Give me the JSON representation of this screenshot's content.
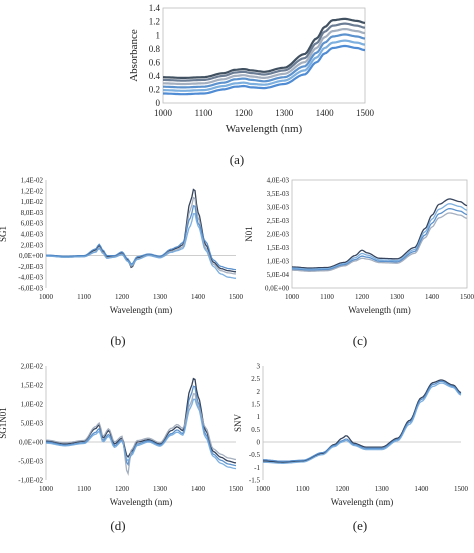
{
  "figure": {
    "captions": [
      "(a)",
      "(b)",
      "(c)",
      "(d)",
      "(e)"
    ]
  },
  "chart_data": [
    {
      "id": "a",
      "type": "line",
      "title": "",
      "xlabel": "Wavelength (nm)",
      "ylabel": "Absorbance",
      "xlim": [
        1000,
        1500
      ],
      "ylim": [
        0,
        1.4
      ],
      "x_ticks": [
        "1000",
        "1100",
        "1200",
        "1300",
        "1400",
        "1500"
      ],
      "x_tick_values": [
        1000,
        1100,
        1200,
        1300,
        1400,
        1500
      ],
      "y_ticks": [
        "0",
        "0.2",
        "0.4",
        "0.6",
        "0.8",
        "1",
        "1.2",
        "1.4"
      ],
      "y_tick_values": [
        0,
        0.2,
        0.4,
        0.6,
        0.8,
        1.0,
        1.2,
        1.4
      ],
      "grid": false,
      "x": [
        1000,
        1050,
        1100,
        1150,
        1180,
        1200,
        1220,
        1250,
        1300,
        1350,
        1380,
        1400,
        1420,
        1450,
        1480,
        1500
      ],
      "series": [
        {
          "values": [
            0.38,
            0.37,
            0.38,
            0.44,
            0.49,
            0.5,
            0.48,
            0.46,
            0.52,
            0.72,
            0.95,
            1.12,
            1.22,
            1.24,
            1.21,
            1.18
          ]
        },
        {
          "values": [
            0.34,
            0.33,
            0.34,
            0.4,
            0.45,
            0.46,
            0.44,
            0.42,
            0.48,
            0.66,
            0.88,
            1.05,
            1.14,
            1.17,
            1.14,
            1.11
          ]
        },
        {
          "values": [
            0.29,
            0.28,
            0.29,
            0.35,
            0.4,
            0.41,
            0.39,
            0.37,
            0.43,
            0.6,
            0.81,
            0.97,
            1.06,
            1.09,
            1.06,
            1.03
          ]
        },
        {
          "values": [
            0.24,
            0.23,
            0.24,
            0.3,
            0.35,
            0.36,
            0.34,
            0.32,
            0.38,
            0.54,
            0.74,
            0.89,
            0.98,
            1.01,
            0.98,
            0.95
          ]
        },
        {
          "values": [
            0.19,
            0.18,
            0.19,
            0.25,
            0.29,
            0.3,
            0.28,
            0.27,
            0.33,
            0.48,
            0.67,
            0.81,
            0.89,
            0.92,
            0.89,
            0.86
          ]
        },
        {
          "values": [
            0.14,
            0.13,
            0.14,
            0.2,
            0.24,
            0.25,
            0.23,
            0.22,
            0.28,
            0.42,
            0.6,
            0.73,
            0.81,
            0.84,
            0.81,
            0.78
          ]
        }
      ],
      "colors": [
        "#2c3e50",
        "#5b6f8a",
        "#9aa6b8",
        "#4a86c8",
        "#6fa6dc",
        "#3d7fcf"
      ]
    },
    {
      "id": "b",
      "type": "line",
      "title": "",
      "xlabel": "Wavelength (nm)",
      "ylabel": "SG1",
      "xlim": [
        1000,
        1500
      ],
      "ylim": [
        -0.006,
        0.014
      ],
      "x_ticks": [
        "1000",
        "1100",
        "1200",
        "1300",
        "1400",
        "1500"
      ],
      "x_tick_values": [
        1000,
        1100,
        1200,
        1300,
        1400,
        1500
      ],
      "y_ticks": [
        "-6,0E-03",
        "-4,0E-03",
        "-2,0E-03",
        "0,0E+00",
        "2,0E-03",
        "4,0E-03",
        "6,0E-03",
        "8,0E-03",
        "1,0E-02",
        "1,2E-02",
        "1,4E-02"
      ],
      "y_tick_values": [
        -0.006,
        -0.004,
        -0.002,
        0,
        0.002,
        0.004,
        0.006,
        0.008,
        0.01,
        0.012,
        0.014
      ],
      "grid": false,
      "x": [
        1000,
        1050,
        1100,
        1130,
        1140,
        1150,
        1160,
        1180,
        1200,
        1215,
        1225,
        1240,
        1270,
        1300,
        1330,
        1345,
        1360,
        1380,
        1390,
        1400,
        1420,
        1440,
        1460,
        1480,
        1500
      ],
      "series": [
        {
          "values": [
            0.0,
            -0.0002,
            -0.0001,
            0.001,
            0.0019,
            0.0008,
            -0.0002,
            -0.0001,
            0.0005,
            -0.0008,
            -0.0022,
            -0.0004,
            0.0002,
            -0.0002,
            0.001,
            0.0014,
            0.002,
            0.01,
            0.0125,
            0.008,
            0.002,
            -0.0012,
            -0.0024,
            -0.0028,
            -0.003
          ]
        },
        {
          "values": [
            0.0,
            -0.0003,
            -0.0002,
            0.0007,
            0.0015,
            0.0005,
            -0.0004,
            -0.0002,
            0.0003,
            -0.001,
            -0.002,
            -0.0006,
            0.0001,
            -0.0003,
            0.0008,
            0.0011,
            0.0016,
            0.0085,
            0.011,
            0.007,
            0.0014,
            -0.0016,
            -0.0028,
            -0.0032,
            -0.0034
          ]
        },
        {
          "values": [
            0.0001,
            -0.0001,
            0.0,
            0.0012,
            0.0021,
            0.001,
            0.0,
            0.0,
            0.0007,
            -0.0006,
            -0.0016,
            -0.0002,
            0.0003,
            -0.0001,
            0.0012,
            0.0016,
            0.0024,
            0.007,
            0.0095,
            0.006,
            0.0026,
            -0.0008,
            -0.002,
            -0.0024,
            -0.0026
          ]
        },
        {
          "values": [
            -0.0001,
            -0.0003,
            -0.0002,
            0.0006,
            0.0013,
            0.0004,
            -0.0005,
            -0.0003,
            0.0002,
            -0.0011,
            -0.0018,
            -0.0007,
            0.0,
            -0.0004,
            0.0006,
            0.0009,
            0.0013,
            0.0055,
            0.008,
            0.0055,
            0.001,
            -0.002,
            -0.0034,
            -0.004,
            -0.0042
          ]
        }
      ],
      "colors": [
        "#1f2f4a",
        "#9aa6b8",
        "#4a86c8",
        "#6fa6dc"
      ]
    },
    {
      "id": "c",
      "type": "line",
      "title": "",
      "xlabel": "Wavelength (nm)",
      "ylabel": "N01",
      "xlim": [
        1000,
        1500
      ],
      "ylim": [
        0,
        0.004
      ],
      "x_ticks": [
        "1000",
        "1100",
        "1200",
        "1300",
        "1400",
        "1500"
      ],
      "x_tick_values": [
        1000,
        1100,
        1200,
        1300,
        1400,
        1500
      ],
      "y_ticks": [
        "0,0E+00",
        "5,0E-04",
        "1,0E-03",
        "1,5E-03",
        "2,0E-03",
        "2,5E-03",
        "3,0E-03",
        "3,5E-03",
        "4,0E-03"
      ],
      "y_tick_values": [
        0,
        0.0005,
        0.001,
        0.0015,
        0.002,
        0.0025,
        0.003,
        0.0035,
        0.004
      ],
      "grid": false,
      "x": [
        1000,
        1050,
        1100,
        1150,
        1180,
        1200,
        1215,
        1250,
        1300,
        1350,
        1380,
        1400,
        1420,
        1450,
        1480,
        1500
      ],
      "series": [
        {
          "values": [
            0.00078,
            0.00074,
            0.00076,
            0.00095,
            0.0012,
            0.0014,
            0.0013,
            0.0011,
            0.00108,
            0.0015,
            0.0022,
            0.0027,
            0.0031,
            0.0033,
            0.0032,
            0.00305
          ]
        },
        {
          "values": [
            0.00074,
            0.0007,
            0.00072,
            0.0009,
            0.00112,
            0.00128,
            0.00122,
            0.00104,
            0.00102,
            0.00142,
            0.00208,
            0.00255,
            0.00292,
            0.00312,
            0.00302,
            0.00288
          ]
        },
        {
          "values": [
            0.0007,
            0.00066,
            0.00068,
            0.00086,
            0.00105,
            0.00118,
            0.00114,
            0.00099,
            0.00097,
            0.00135,
            0.00196,
            0.0024,
            0.00275,
            0.00294,
            0.00285,
            0.00272
          ]
        },
        {
          "values": [
            0.00066,
            0.00062,
            0.00064,
            0.00082,
            0.001,
            0.0011,
            0.00107,
            0.00094,
            0.00092,
            0.00128,
            0.00186,
            0.00226,
            0.0026,
            0.00278,
            0.0027,
            0.00258
          ]
        }
      ],
      "colors": [
        "#1f2f4a",
        "#6fa6dc",
        "#4a86c8",
        "#9aa6b8"
      ]
    },
    {
      "id": "d",
      "type": "line",
      "title": "",
      "xlabel": "Wavelength (nm)",
      "ylabel": "SG1N01",
      "xlim": [
        1000,
        1500
      ],
      "ylim": [
        -0.01,
        0.02
      ],
      "x_ticks": [
        "1000",
        "1100",
        "1200",
        "1300",
        "1400",
        "1500"
      ],
      "x_tick_values": [
        1000,
        1100,
        1200,
        1300,
        1400,
        1500
      ],
      "y_ticks": [
        "-1,0E-02",
        "-5,0E-03",
        "0,0E+00",
        "5,0E-03",
        "1,0E-02",
        "1,5E-02",
        "2,0E-02"
      ],
      "y_tick_values": [
        -0.01,
        -0.005,
        0,
        0.005,
        0.01,
        0.015,
        0.02
      ],
      "grid": false,
      "x": [
        1000,
        1050,
        1100,
        1130,
        1140,
        1150,
        1165,
        1180,
        1200,
        1215,
        1225,
        1240,
        1270,
        1300,
        1330,
        1345,
        1360,
        1380,
        1390,
        1400,
        1420,
        1440,
        1460,
        1480,
        1500
      ],
      "series": [
        {
          "values": [
            0.0003,
            -0.0005,
            0.0002,
            0.0035,
            0.0045,
            0.001,
            0.003,
            -0.0005,
            0.001,
            -0.004,
            -0.0025,
            0.0,
            0.0006,
            -0.0005,
            0.003,
            0.004,
            0.003,
            0.014,
            0.017,
            0.012,
            0.003,
            -0.0025,
            -0.004,
            -0.005,
            -0.0055
          ]
        },
        {
          "values": [
            0.0,
            -0.0008,
            -0.0002,
            0.0025,
            0.0035,
            0.0004,
            0.002,
            -0.001,
            0.0005,
            -0.006,
            -0.003,
            -0.0005,
            0.0003,
            -0.0008,
            0.0022,
            0.0032,
            0.0022,
            0.012,
            0.015,
            0.0105,
            0.002,
            -0.0032,
            -0.0048,
            -0.0058,
            -0.0062
          ]
        },
        {
          "values": [
            0.0005,
            -0.0002,
            0.0004,
            0.004,
            0.005,
            0.0015,
            0.0035,
            0.0,
            0.0015,
            -0.0085,
            -0.002,
            0.0004,
            0.001,
            -0.0002,
            0.0036,
            0.0046,
            0.0036,
            0.01,
            0.013,
            0.0095,
            0.0038,
            -0.0018,
            -0.0032,
            -0.0042,
            -0.0046
          ]
        },
        {
          "values": [
            -0.0003,
            -0.001,
            -0.0004,
            0.002,
            0.0028,
            0.0,
            0.0015,
            -0.0014,
            0.0002,
            -0.005,
            -0.0035,
            -0.0009,
            0.0,
            -0.0011,
            0.0018,
            0.0026,
            0.0018,
            0.009,
            0.0115,
            0.009,
            0.0012,
            -0.0038,
            -0.0056,
            -0.0066,
            -0.007
          ]
        }
      ],
      "colors": [
        "#1f2f4a",
        "#4a86c8",
        "#9aa6b8",
        "#6fa6dc"
      ]
    },
    {
      "id": "e",
      "type": "line",
      "title": "",
      "xlabel": "Wavelength (nm)",
      "ylabel": "SNV",
      "xlim": [
        1000,
        1500
      ],
      "ylim": [
        -1.5,
        3
      ],
      "x_ticks": [
        "1000",
        "1100",
        "1200",
        "1300",
        "1400",
        "1500"
      ],
      "x_tick_values": [
        1000,
        1100,
        1200,
        1300,
        1400,
        1500
      ],
      "y_ticks": [
        "-1.5",
        "-1",
        "-0.5",
        "0",
        "0.5",
        "1",
        "1.5",
        "2",
        "2.5",
        "3"
      ],
      "y_tick_values": [
        -1.5,
        -1,
        -0.5,
        0,
        0.5,
        1,
        1.5,
        2,
        2.5,
        3
      ],
      "grid": false,
      "x": [
        1000,
        1050,
        1100,
        1150,
        1180,
        1200,
        1210,
        1230,
        1260,
        1300,
        1340,
        1370,
        1400,
        1430,
        1450,
        1480,
        1500
      ],
      "series": [
        {
          "values": [
            -0.75,
            -0.8,
            -0.75,
            -0.45,
            -0.1,
            0.15,
            0.25,
            -0.05,
            -0.2,
            -0.2,
            0.15,
            0.85,
            1.75,
            2.35,
            2.45,
            2.25,
            1.95
          ]
        },
        {
          "values": [
            -0.7,
            -0.76,
            -0.72,
            -0.42,
            -0.14,
            0.05,
            0.12,
            -0.1,
            -0.25,
            -0.25,
            0.1,
            0.78,
            1.68,
            2.28,
            2.4,
            2.2,
            1.9
          ]
        },
        {
          "values": [
            -0.8,
            -0.84,
            -0.79,
            -0.5,
            -0.18,
            0.0,
            0.06,
            -0.14,
            -0.3,
            -0.3,
            0.05,
            0.7,
            1.6,
            2.2,
            2.33,
            2.15,
            1.85
          ]
        }
      ],
      "colors": [
        "#1f2f4a",
        "#4a86c8",
        "#6fa6dc"
      ]
    }
  ]
}
